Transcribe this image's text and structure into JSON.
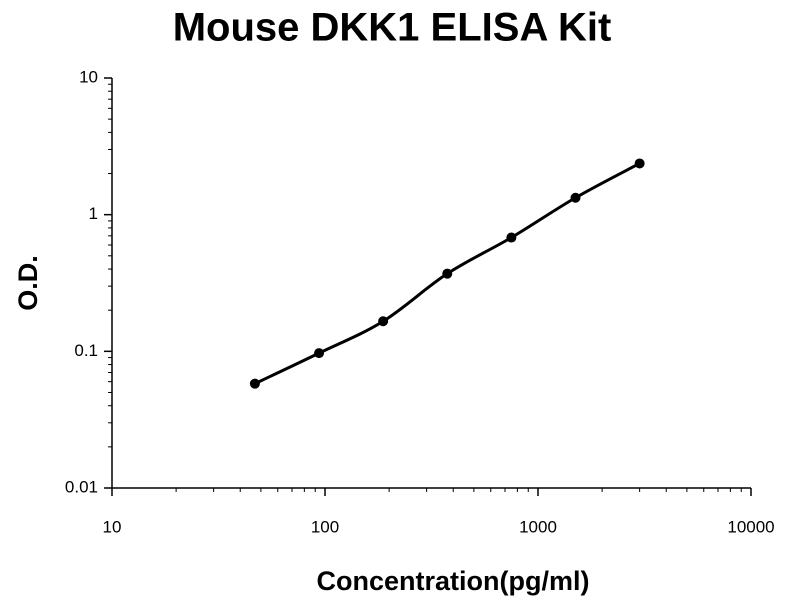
{
  "chart_data": {
    "type": "scatter",
    "title": "Mouse DKK1 ELISA Kit",
    "xlabel": "Concentration(pg/ml)",
    "ylabel": "O.D.",
    "x": [
      46.875,
      93.75,
      187.5,
      375,
      750,
      1500,
      3000
    ],
    "values": [
      0.058,
      0.097,
      0.166,
      0.37,
      0.68,
      1.33,
      2.37
    ],
    "color": "#000000",
    "fit_line": true,
    "xscale": "log",
    "yscale": "log",
    "xlim": [
      10,
      10000
    ],
    "xticks": [
      10,
      100,
      1000,
      10000
    ],
    "ylim": [
      0.01,
      10
    ],
    "yticks": [
      0.01,
      0.1,
      1,
      10
    ]
  }
}
